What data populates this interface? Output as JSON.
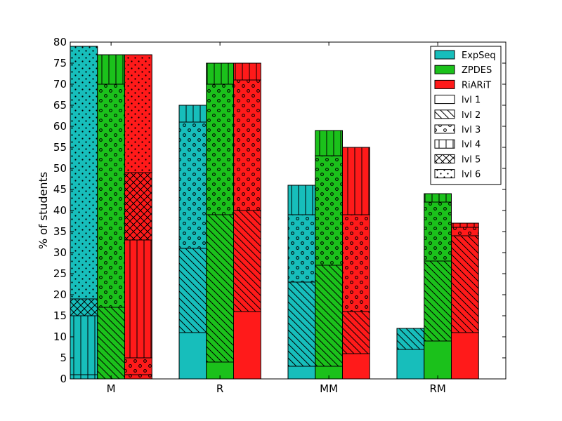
{
  "chart_data": {
    "type": "bar",
    "subtype": "stacked-grouped",
    "title": "",
    "xlabel": "",
    "ylabel": "% of students",
    "ylim": [
      0,
      80
    ],
    "yticks": [
      0,
      5,
      10,
      15,
      20,
      25,
      30,
      35,
      40,
      45,
      50,
      55,
      60,
      65,
      70,
      75,
      80
    ],
    "categories": [
      "M",
      "R",
      "MM",
      "RM"
    ],
    "legend_position": "top-right",
    "levels": [
      {
        "name": "lvl 1",
        "pattern": "none"
      },
      {
        "name": "lvl 2",
        "pattern": "diagonal"
      },
      {
        "name": "lvl 3",
        "pattern": "circles"
      },
      {
        "name": "lvl 4",
        "pattern": "vertical"
      },
      {
        "name": "lvl 5",
        "pattern": "crosshatch"
      },
      {
        "name": "lvl 6",
        "pattern": "dots"
      }
    ],
    "series": [
      {
        "name": "ExpSeq",
        "color": "#17BEBB",
        "stacks": [
          [
            {
              "level": 4,
              "from": 0,
              "to": 1
            },
            {
              "level": 4,
              "from": 1,
              "to": 15
            },
            {
              "level": 5,
              "from": 15,
              "to": 19
            },
            {
              "level": 6,
              "from": 19,
              "to": 79
            }
          ],
          [
            {
              "level": 1,
              "from": 0,
              "to": 11
            },
            {
              "level": 2,
              "from": 11,
              "to": 31
            },
            {
              "level": 3,
              "from": 31,
              "to": 61
            },
            {
              "level": 4,
              "from": 61,
              "to": 65
            }
          ],
          [
            {
              "level": 1,
              "from": 0,
              "to": 3
            },
            {
              "level": 2,
              "from": 3,
              "to": 23
            },
            {
              "level": 3,
              "from": 23,
              "to": 39
            },
            {
              "level": 4,
              "from": 39,
              "to": 46
            }
          ],
          [
            {
              "level": 1,
              "from": 0,
              "to": 7
            },
            {
              "level": 2,
              "from": 7,
              "to": 12
            }
          ]
        ]
      },
      {
        "name": "ZPDES",
        "color": "#1BC11B",
        "stacks": [
          [
            {
              "level": 2,
              "from": 0,
              "to": 17
            },
            {
              "level": 3,
              "from": 17,
              "to": 70
            },
            {
              "level": 4,
              "from": 70,
              "to": 77
            }
          ],
          [
            {
              "level": 1,
              "from": 0,
              "to": 4
            },
            {
              "level": 2,
              "from": 4,
              "to": 39
            },
            {
              "level": 3,
              "from": 39,
              "to": 70
            },
            {
              "level": 4,
              "from": 70,
              "to": 75
            }
          ],
          [
            {
              "level": 1,
              "from": 0,
              "to": 3
            },
            {
              "level": 2,
              "from": 3,
              "to": 27
            },
            {
              "level": 3,
              "from": 27,
              "to": 53
            },
            {
              "level": 4,
              "from": 53,
              "to": 59
            }
          ],
          [
            {
              "level": 1,
              "from": 0,
              "to": 9
            },
            {
              "level": 2,
              "from": 9,
              "to": 28
            },
            {
              "level": 3,
              "from": 28,
              "to": 42
            },
            {
              "level": 4,
              "from": 42,
              "to": 44
            }
          ]
        ]
      },
      {
        "name": "RiARiT",
        "color": "#FF1A1A",
        "stacks": [
          [
            {
              "level": 3,
              "from": 0,
              "to": 1
            },
            {
              "level": 3,
              "from": 1,
              "to": 5
            },
            {
              "level": 4,
              "from": 5,
              "to": 33
            },
            {
              "level": 5,
              "from": 33,
              "to": 49
            },
            {
              "level": 6,
              "from": 49,
              "to": 77
            }
          ],
          [
            {
              "level": 1,
              "from": 0,
              "to": 16
            },
            {
              "level": 2,
              "from": 16,
              "to": 40
            },
            {
              "level": 3,
              "from": 40,
              "to": 71
            },
            {
              "level": 4,
              "from": 71,
              "to": 75
            }
          ],
          [
            {
              "level": 1,
              "from": 0,
              "to": 6
            },
            {
              "level": 2,
              "from": 6,
              "to": 16
            },
            {
              "level": 3,
              "from": 16,
              "to": 39
            },
            {
              "level": 4,
              "from": 39,
              "to": 55
            }
          ],
          [
            {
              "level": 1,
              "from": 0,
              "to": 11
            },
            {
              "level": 2,
              "from": 11,
              "to": 34
            },
            {
              "level": 3,
              "from": 34,
              "to": 36
            },
            {
              "level": 4,
              "from": 36,
              "to": 37
            }
          ]
        ]
      }
    ]
  }
}
